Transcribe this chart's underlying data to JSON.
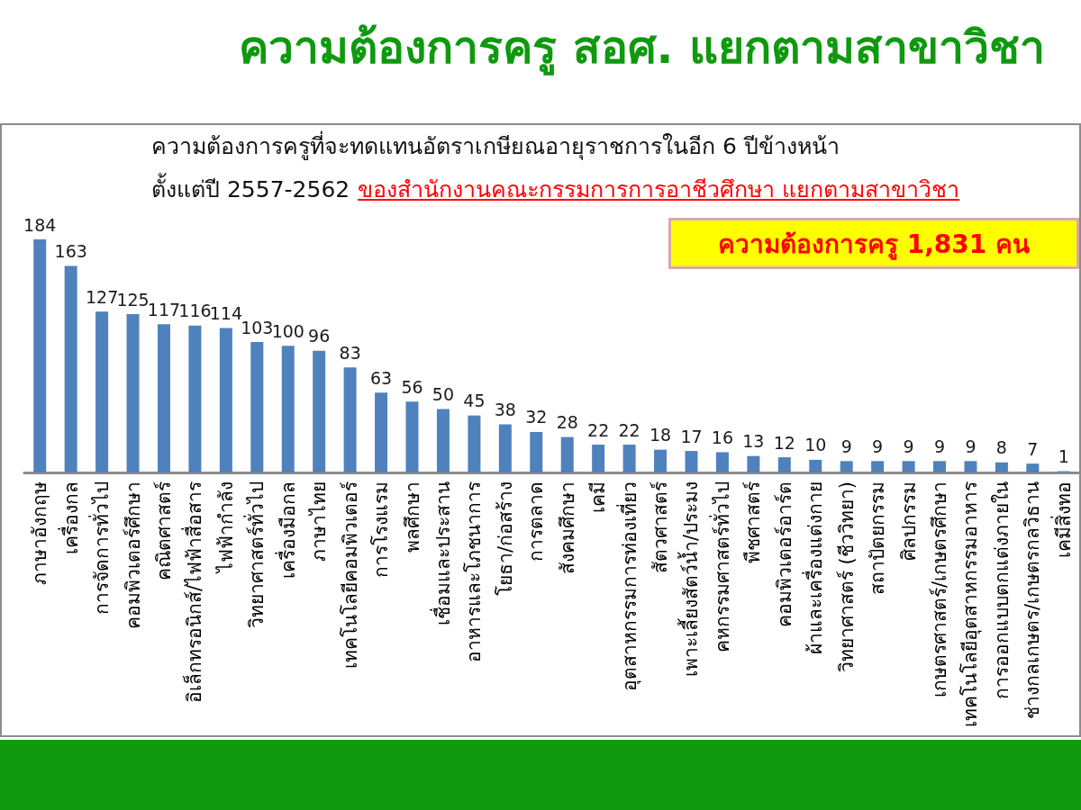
{
  "chart_data": {
    "type": "bar",
    "title": "ความต้องการครู สอศ. แยกตามสาขาวิชา",
    "subtitle": "ความต้องการครูที่จะทดแทนอัตราเกษียณอายุราชการในอีก 6 ปีข้างหน้า",
    "annotations": [
      "ตั้งแต่ปี 2557-2562",
      "ของสำนักงานคณะกรรมการการอาชีวศึกษา แยกตามสาขาวิชา",
      "ความต้องการครู 1,831 คน"
    ],
    "categories": [
      "ภาษาอังกฤษ",
      "เครื่องกล",
      "การจัดการทั่วไป",
      "คอมพิวเตอร์ศึกษา",
      "คณิตศาสตร์",
      "อิเล็กทรอนิกส์/ไฟฟ้าสื่อสาร",
      "ไฟฟ้ากำลัง",
      "วิทยาศาสตร์ทั่วไป",
      "เครื่องมือกล",
      "ภาษาไทย",
      "เทคโนโลยีคอมพิวเตอร์",
      "การโรงแรม",
      "พลศึกษา",
      "เชื่อมและประสาน",
      "อาหารและโภชนาการ",
      "โยธา/ก่อสร้าง",
      "การตลาด",
      "สังคมศึกษา",
      "เคมี",
      "อุตสาหกรรมการท่องเที่ยว",
      "สัตวศาสตร์",
      "เพาะเลี้ยงสัตว์น้ำ/ประมง",
      "คหกรรมศาสตร์ทั่วไป",
      "พืชศาสตร์",
      "คอมพิวเตอร์อาร์ต",
      "ผ้าและเครื่องแต่งกาย",
      "วิทยาศาสตร์ (ชีววิทยา)",
      "สถาปัตยกรรม",
      "ศิลปกรรม",
      "เกษตรศาสตร์/เกษตรศึกษา",
      "เทคโนโลยีอุตสาหกรรมอาหาร",
      "การออกแบบตกแต่งภายใน",
      "ช่างกลเกษตร/เกษตรกลวิธาน",
      "เคมีสิ่งทอ"
    ],
    "values": [
      184,
      163,
      127,
      125,
      117,
      116,
      114,
      103,
      100,
      96,
      83,
      63,
      56,
      50,
      45,
      38,
      32,
      28,
      22,
      22,
      18,
      17,
      16,
      13,
      12,
      10,
      9,
      9,
      9,
      9,
      9,
      8,
      7,
      1
    ],
    "color": "#4f81bd",
    "data_labels": true,
    "tick_labels": "x"
  }
}
